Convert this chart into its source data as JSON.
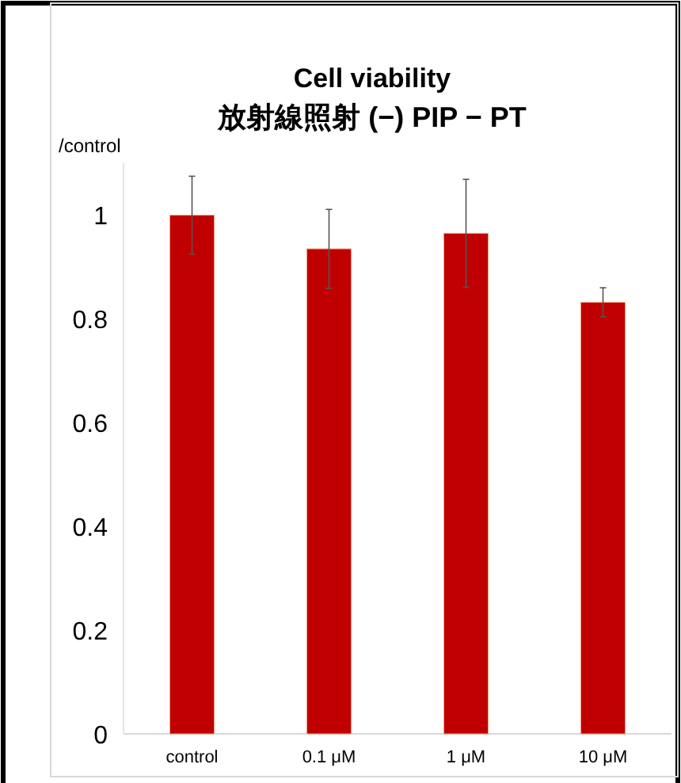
{
  "chart_data": {
    "type": "bar",
    "title": "Cell viability",
    "subtitle": "放射線照射 (−) PIP − PT",
    "ylabel": "/control",
    "categories": [
      "control",
      "0.1 μM",
      "1 μM",
      "10 μM"
    ],
    "values": [
      1.0,
      0.935,
      0.965,
      0.832
    ],
    "errors": [
      0.075,
      0.076,
      0.104,
      0.028
    ],
    "color": "#c00000",
    "ylim": [
      0,
      1.1
    ],
    "yticks": [
      0,
      0.2,
      0.4,
      0.6,
      0.8,
      1
    ]
  }
}
